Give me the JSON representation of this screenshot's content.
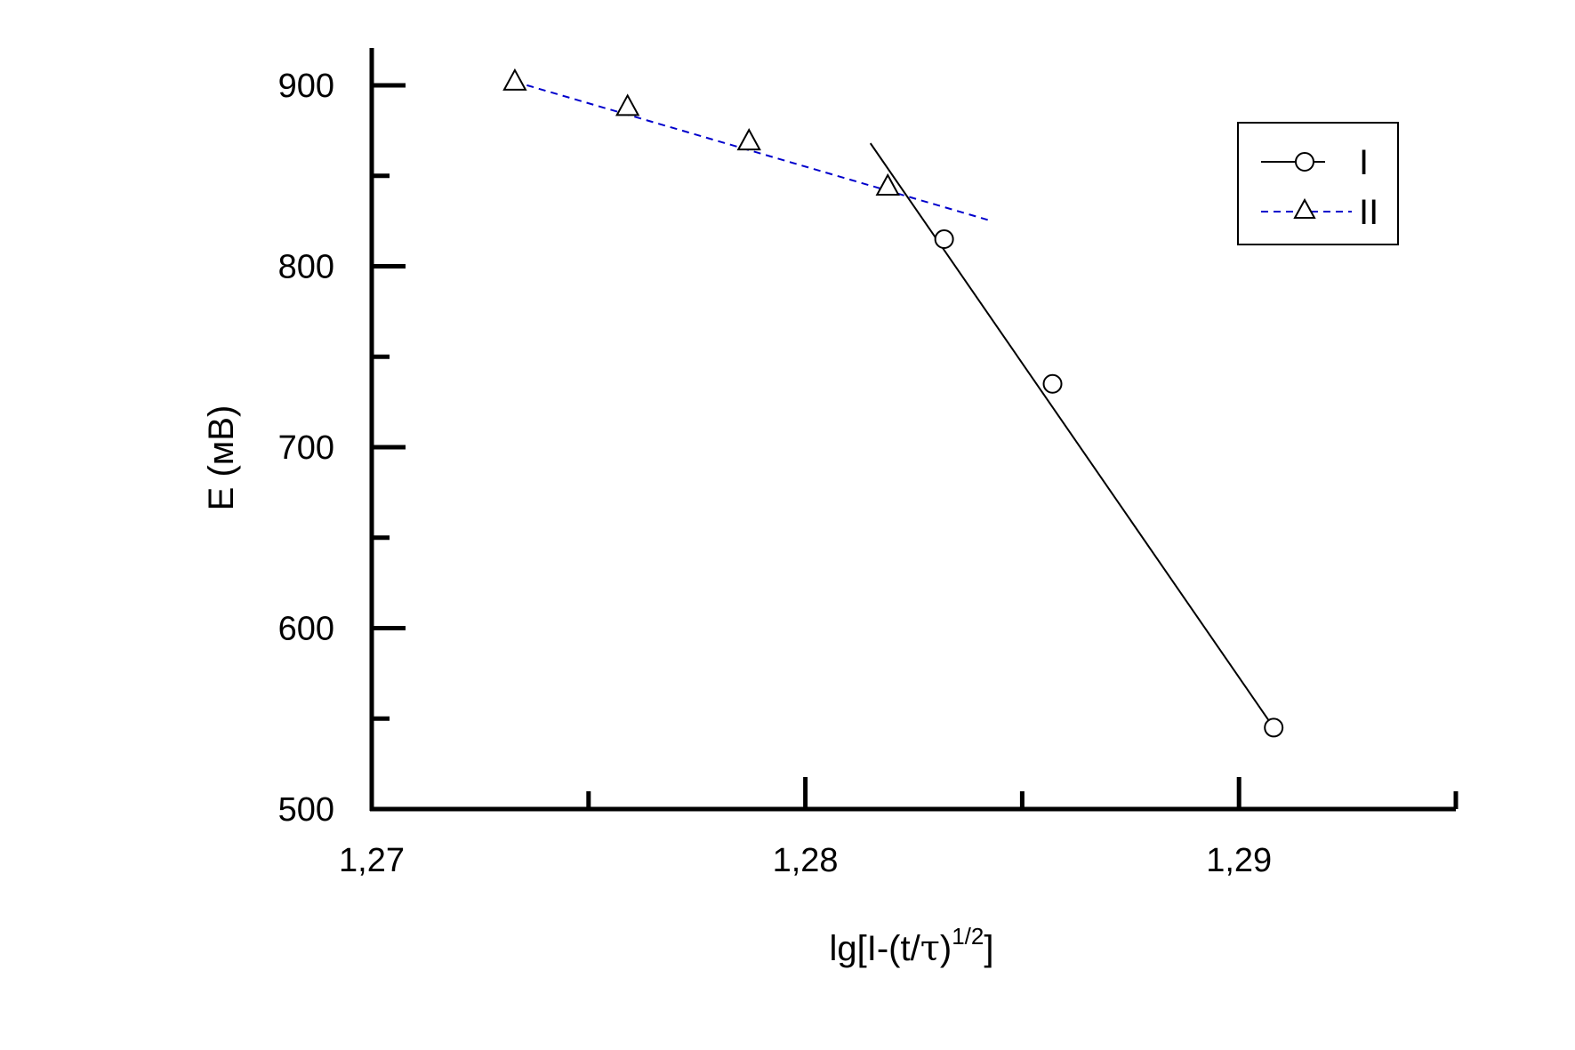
{
  "chart_data": {
    "type": "line",
    "xlabel": {
      "base": "lg[I-(t/",
      "tau": "τ",
      "close": ")",
      "exponent": "1/2",
      "end": "]"
    },
    "ylabel": "E (мВ)",
    "xlim": [
      1.27,
      1.295
    ],
    "ylim": [
      500,
      920
    ],
    "x_ticks": [
      1.27,
      1.28,
      1.29
    ],
    "x_tick_labels": [
      "1,27",
      "1,28",
      "1,29"
    ],
    "x_minor_ticks": [
      1.275,
      1.285,
      1.295
    ],
    "y_ticks": [
      500,
      600,
      700,
      800,
      900
    ],
    "y_tick_labels": [
      "500",
      "600",
      "700",
      "800",
      "900"
    ],
    "y_minor_ticks": [
      550,
      650,
      750,
      850
    ],
    "legend_position": "top-right",
    "series": [
      {
        "name": "I",
        "marker": "circle",
        "line_style": "solid",
        "color": "#000000",
        "points": [
          {
            "x": 1.2832,
            "y": 815
          },
          {
            "x": 1.2857,
            "y": 735
          },
          {
            "x": 1.2908,
            "y": 545
          }
        ],
        "fit_line": [
          [
            1.2815,
            868
          ],
          [
            1.2908,
            545
          ]
        ]
      },
      {
        "name": "II",
        "marker": "triangle",
        "line_style": "dashed",
        "color": "#0000cc",
        "points": [
          {
            "x": 1.2733,
            "y": 902
          },
          {
            "x": 1.2759,
            "y": 888
          },
          {
            "x": 1.2787,
            "y": 869
          },
          {
            "x": 1.2819,
            "y": 844
          }
        ],
        "fit_line": [
          [
            1.2733,
            902
          ],
          [
            1.2843,
            825
          ]
        ]
      }
    ]
  }
}
